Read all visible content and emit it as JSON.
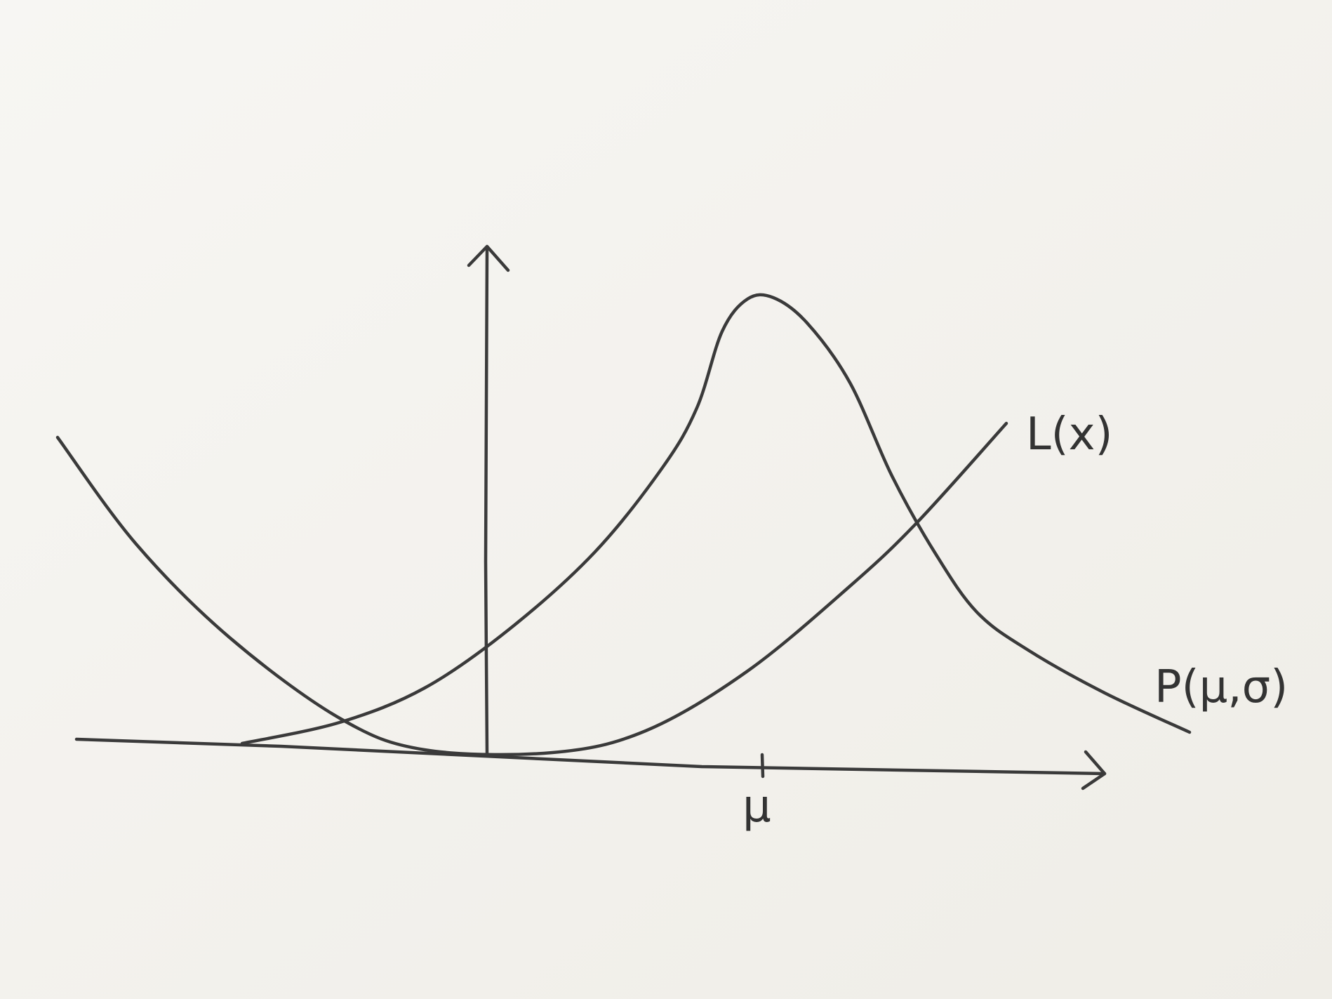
{
  "diagram": {
    "labels": {
      "loss_curve": "L(x)",
      "distribution_curve": "P(μ,σ)",
      "mean_tick": "μ"
    },
    "colors": {
      "ink": "#3a3a3a",
      "paper": "#f4f3ef"
    }
  }
}
